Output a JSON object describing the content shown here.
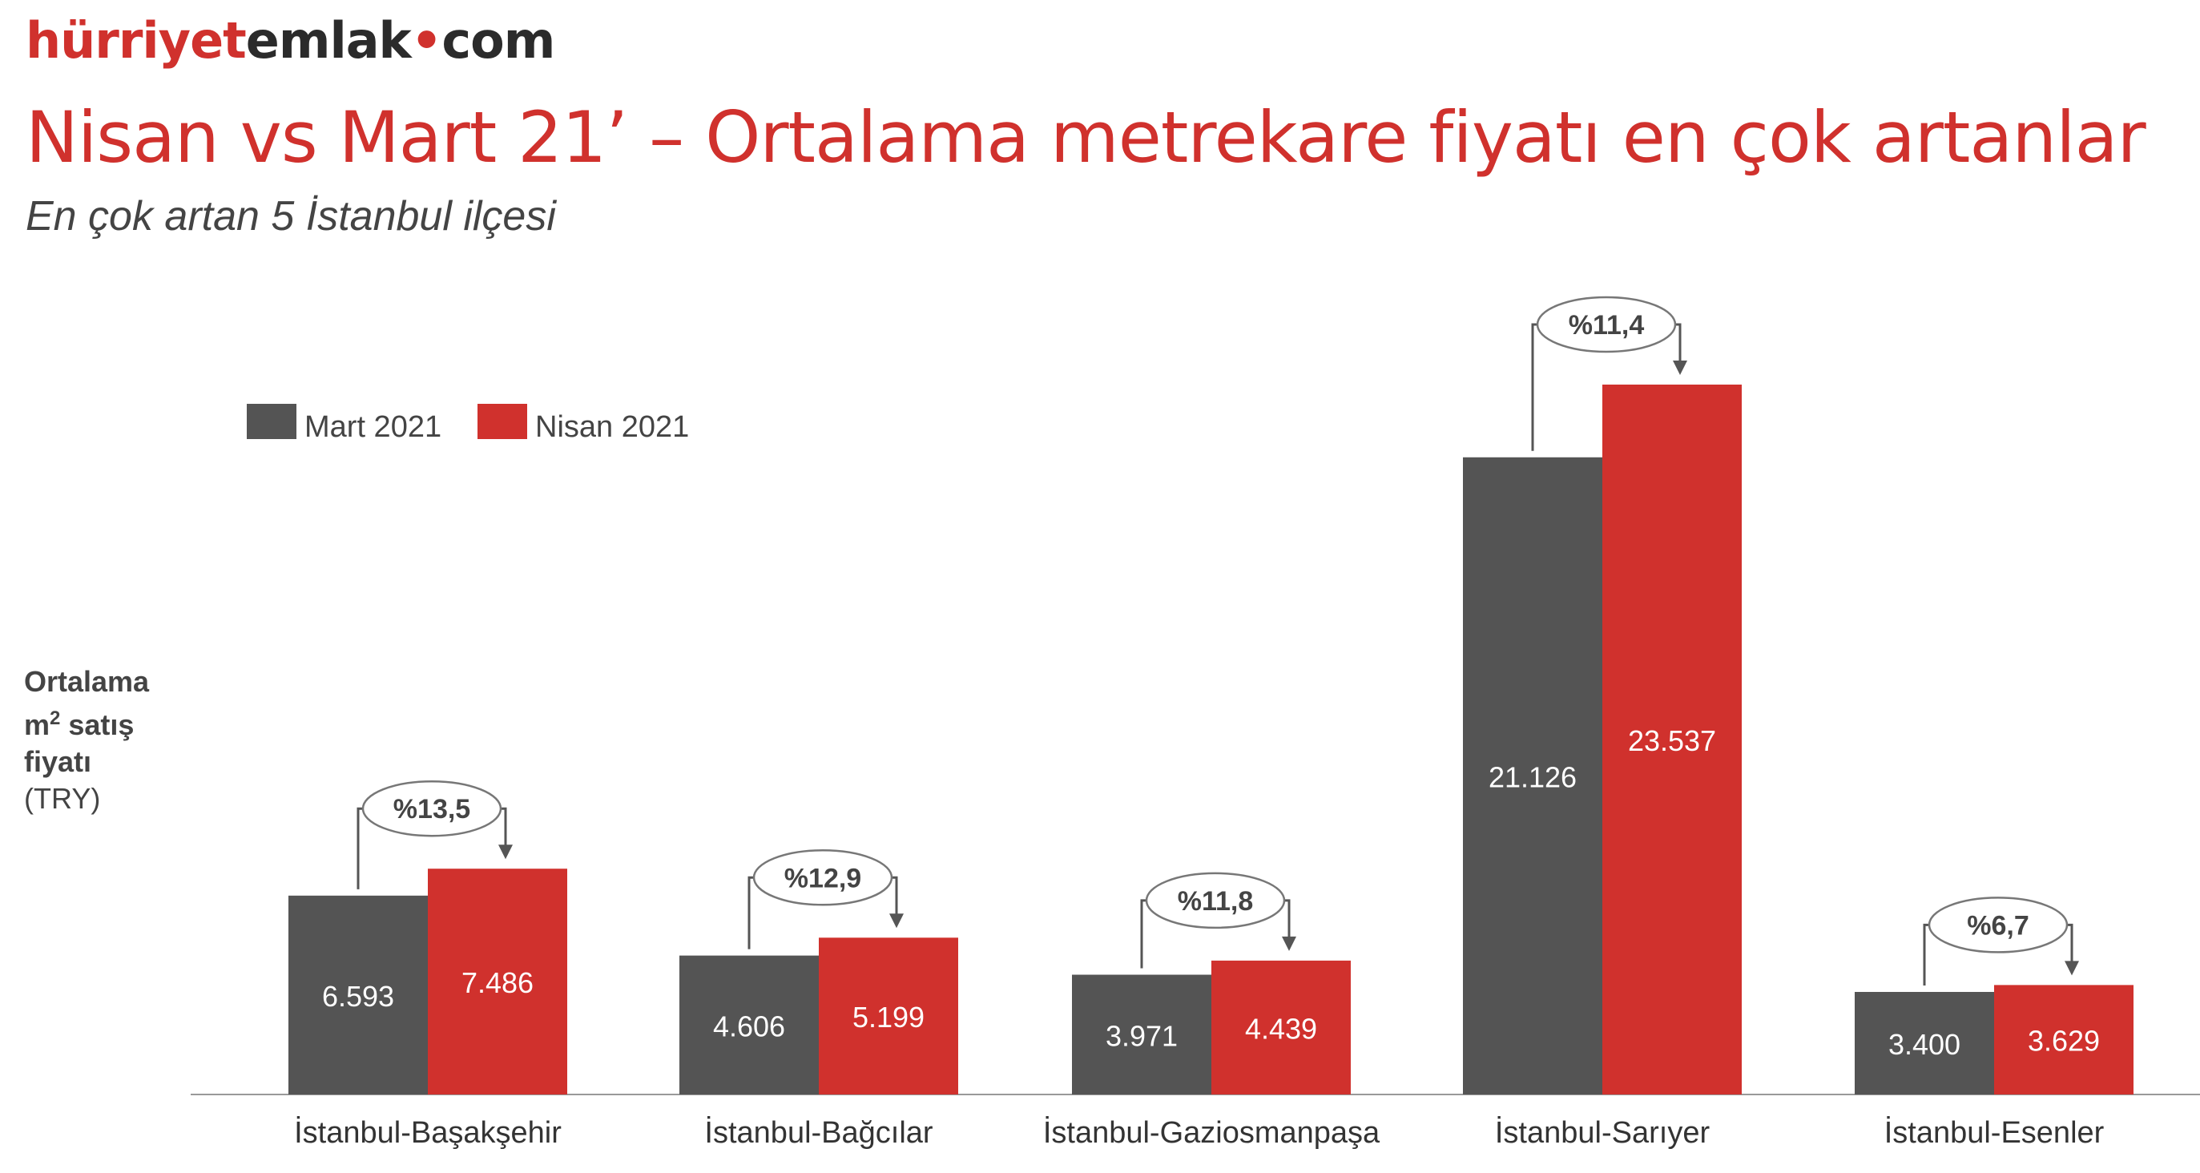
{
  "logo": {
    "part1": "hürriyet",
    "part2": "emlak",
    "part3": "com"
  },
  "title": "Nisan vs Mart 21’ – Ortalama metrekare fiyatı en çok artanlar",
  "subtitle": "En çok artan 5 İstanbul ilçesi",
  "ylabel": {
    "line1": "Ortalama",
    "line2_a": "m",
    "line2_sup": "2",
    "line2_b": " satış",
    "line3": "fiyatı",
    "line4": "(TRY)"
  },
  "colors": {
    "mart": "#545454",
    "nisan": "#d0312d",
    "brand": "#d0312d"
  },
  "chart_data": {
    "type": "bar",
    "title": "Nisan vs Mart 21’ – Ortalama metrekare fiyatı en çok artanlar",
    "subtitle": "En çok artan 5 İstanbul ilçesi",
    "ylabel": "Ortalama m2 satış fiyatı (TRY)",
    "xlabel": "",
    "categories": [
      "İstanbul-Başakşehir",
      "İstanbul-Bağcılar",
      "İstanbul-Gaziosmanpaşa",
      "İstanbul-Sarıyer",
      "İstanbul-Esenler"
    ],
    "series": [
      {
        "name": "Mart 2021",
        "values": [
          6593,
          4606,
          3971,
          21126,
          3400
        ],
        "labels": [
          "6.593",
          "4.606",
          "3.971",
          "21.126",
          "3.400"
        ]
      },
      {
        "name": "Nisan 2021",
        "values": [
          7486,
          5199,
          4439,
          23537,
          3629
        ],
        "labels": [
          "7.486",
          "5.199",
          "4.439",
          "23.537",
          "3.629"
        ]
      }
    ],
    "changes": [
      "%13,5",
      "%12,9",
      "%11,8",
      "%11,4",
      "%6,7"
    ],
    "legend": "top-left",
    "grid": false
  }
}
